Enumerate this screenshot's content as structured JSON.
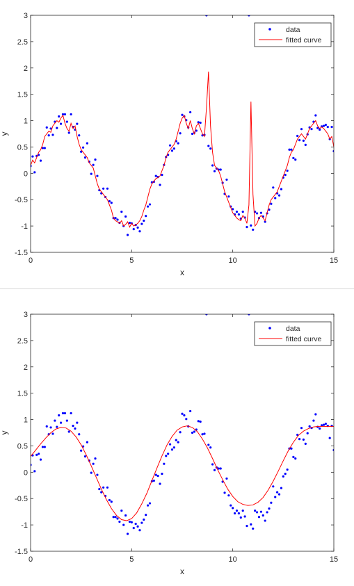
{
  "colors": {
    "data_marker": "#0000ff",
    "fitted_curve": "#ff0000",
    "axis": "#262626",
    "legend_border": "#262626"
  },
  "chart_data": [
    {
      "type": "scatter",
      "xlabel": "x",
      "ylabel": "y",
      "xlim": [
        0,
        15
      ],
      "ylim": [
        -1.5,
        3
      ],
      "xticks": [
        0,
        5,
        10,
        15
      ],
      "yticks": [
        -1.5,
        -1,
        -0.5,
        0,
        0.5,
        1,
        1.5,
        2,
        2.5,
        3
      ],
      "grid": false,
      "legend_placement": "top-right",
      "series": [
        {
          "name": "data",
          "kind": "points",
          "x": [
            0,
            0.1,
            0.2,
            0.3,
            0.4,
            0.5,
            0.6,
            0.7,
            0.8,
            0.9,
            1.0,
            1.1,
            1.2,
            1.3,
            1.4,
            1.5,
            1.6,
            1.7,
            1.8,
            1.9,
            2.0,
            2.1,
            2.2,
            2.3,
            2.4,
            2.5,
            2.6,
            2.7,
            2.8,
            2.9,
            3.0,
            3.1,
            3.2,
            3.3,
            3.4,
            3.5,
            3.6,
            3.7,
            3.8,
            3.9,
            4.0,
            4.1,
            4.2,
            4.3,
            4.4,
            4.5,
            4.6,
            4.7,
            4.8,
            4.9,
            5.0,
            5.1,
            5.2,
            5.3,
            5.4,
            5.5,
            5.6,
            5.7,
            5.8,
            5.9,
            6.0,
            6.1,
            6.2,
            6.3,
            6.4,
            6.5,
            6.6,
            6.7,
            6.8,
            6.9,
            7.0,
            7.1,
            7.2,
            7.3,
            7.4,
            7.5,
            7.6,
            7.7,
            7.8,
            7.9,
            8.0,
            8.1,
            8.2,
            8.3,
            8.4,
            8.5,
            8.6,
            8.7,
            8.8,
            8.9,
            9.0,
            9.1,
            9.2,
            9.3,
            9.4,
            9.5,
            9.6,
            9.7,
            9.8,
            9.9,
            10.0,
            10.1,
            10.2,
            10.3,
            10.4,
            10.5,
            10.6,
            10.7,
            10.8,
            10.9,
            11.0,
            11.1,
            11.2,
            11.3,
            11.4,
            11.5,
            11.6,
            11.7,
            11.8,
            11.9,
            12.0,
            12.1,
            12.2,
            12.3,
            12.4,
            12.5,
            12.6,
            12.7,
            12.8,
            12.9,
            13.0,
            13.1,
            13.2,
            13.3,
            13.4,
            13.5,
            13.6,
            13.7,
            13.8,
            13.9,
            14.0,
            14.1,
            14.2,
            14.3,
            14.4,
            14.5,
            14.6,
            14.7,
            14.8,
            14.9,
            15.0
          ],
          "y": [
            0.14,
            0.32,
            0.02,
            0.33,
            0.35,
            0.24,
            0.48,
            0.48,
            0.87,
            0.72,
            0.85,
            0.73,
            0.98,
            0.86,
            1.08,
            0.94,
            1.12,
            1.12,
            0.98,
            0.77,
            1.12,
            0.88,
            0.83,
            0.94,
            0.72,
            0.41,
            0.49,
            0.3,
            0.57,
            0.22,
            -0.01,
            0.16,
            0.26,
            -0.05,
            -0.32,
            -0.38,
            -0.29,
            -0.45,
            -0.29,
            -0.53,
            -0.56,
            -0.85,
            -0.85,
            -0.88,
            -0.94,
            -0.73,
            -1.0,
            -0.82,
            -1.17,
            -0.94,
            -0.95,
            -1.06,
            -0.98,
            -1.03,
            -1.1,
            -0.96,
            -0.9,
            -0.81,
            -0.63,
            -0.59,
            -0.17,
            -0.16,
            -0.05,
            -0.07,
            -0.22,
            -0.03,
            0.16,
            0.31,
            0.35,
            0.53,
            0.43,
            0.47,
            0.61,
            0.57,
            0.76,
            1.11,
            1.08,
            1.01,
            0.87,
            1.16,
            0.75,
            0.77,
            0.81,
            0.97,
            0.96,
            0.72,
            0.73,
            3.0,
            0.52,
            0.47,
            0.15,
            0.04,
            0.09,
            0.07,
            0.07,
            -0.18,
            -0.39,
            -0.12,
            -0.44,
            -0.63,
            -0.68,
            -0.78,
            -0.73,
            -0.78,
            -0.86,
            -0.73,
            -0.84,
            -1.02,
            3.0,
            -0.99,
            -1.07,
            -0.73,
            -0.76,
            -0.85,
            -0.75,
            -0.82,
            -0.92,
            -0.76,
            -0.69,
            -0.58,
            -0.27,
            -0.47,
            -0.38,
            -0.42,
            -0.3,
            -0.08,
            -0.03,
            0.05,
            0.45,
            0.45,
            0.29,
            0.26,
            0.71,
            0.63,
            0.84,
            0.62,
            0.54,
            0.74,
            0.87,
            0.84,
            0.98,
            1.1,
            0.86,
            0.83,
            0.89,
            0.9,
            0.92,
            0.88,
            0.65,
            0.88,
            0.42
          ]
        },
        {
          "name": "fitted curve",
          "kind": "line",
          "x": [
            0,
            0.1,
            0.2,
            0.3,
            0.4,
            0.5,
            0.6,
            0.7,
            0.8,
            0.9,
            1.0,
            1.1,
            1.2,
            1.3,
            1.4,
            1.5,
            1.6,
            1.7,
            1.8,
            1.9,
            2.0,
            2.1,
            2.2,
            2.3,
            2.4,
            2.5,
            2.6,
            2.7,
            2.8,
            2.9,
            3.0,
            3.1,
            3.2,
            3.3,
            3.4,
            3.5,
            3.6,
            3.7,
            3.8,
            3.9,
            4.0,
            4.1,
            4.2,
            4.3,
            4.4,
            4.5,
            4.6,
            4.7,
            4.8,
            4.9,
            5.0,
            5.1,
            5.2,
            5.3,
            5.4,
            5.5,
            5.6,
            5.7,
            5.8,
            5.9,
            6.0,
            6.1,
            6.2,
            6.3,
            6.4,
            6.5,
            6.6,
            6.7,
            6.8,
            6.9,
            7.0,
            7.1,
            7.2,
            7.3,
            7.4,
            7.5,
            7.6,
            7.7,
            7.8,
            7.9,
            8.0,
            8.1,
            8.2,
            8.3,
            8.4,
            8.5,
            8.6,
            8.7,
            8.8,
            8.9,
            9.0,
            9.1,
            9.2,
            9.3,
            9.4,
            9.5,
            9.6,
            9.7,
            9.8,
            9.9,
            10.0,
            10.1,
            10.2,
            10.3,
            10.4,
            10.5,
            10.6,
            10.7,
            10.8,
            10.9,
            11.0,
            11.1,
            11.2,
            11.3,
            11.4,
            11.5,
            11.6,
            11.7,
            11.8,
            11.9,
            12.0,
            12.1,
            12.2,
            12.3,
            12.4,
            12.5,
            12.6,
            12.7,
            12.8,
            12.9,
            13.0,
            13.1,
            13.2,
            13.3,
            13.4,
            13.5,
            13.6,
            13.7,
            13.8,
            13.9,
            14.0,
            14.1,
            14.2,
            14.3,
            14.4,
            14.5,
            14.6,
            14.7,
            14.8,
            14.9,
            15.0
          ],
          "y": [
            0.15,
            0.25,
            0.2,
            0.3,
            0.4,
            0.45,
            0.55,
            0.7,
            0.75,
            0.8,
            0.78,
            0.9,
            0.95,
            1.0,
            0.97,
            1.05,
            1.1,
            0.95,
            0.85,
            0.8,
            0.95,
            0.85,
            0.9,
            0.7,
            0.55,
            0.45,
            0.4,
            0.35,
            0.3,
            0.2,
            0.15,
            0.1,
            -0.05,
            -0.2,
            -0.3,
            -0.35,
            -0.4,
            -0.45,
            -0.5,
            -0.6,
            -0.7,
            -0.85,
            -0.9,
            -0.92,
            -0.95,
            -0.9,
            -1.0,
            -0.97,
            -0.92,
            -1.02,
            -0.95,
            -1.0,
            -0.98,
            -0.95,
            -0.9,
            -0.82,
            -0.7,
            -0.6,
            -0.45,
            -0.3,
            -0.2,
            -0.15,
            -0.1,
            -0.08,
            -0.05,
            0.05,
            0.15,
            0.3,
            0.4,
            0.45,
            0.5,
            0.55,
            0.65,
            0.8,
            0.95,
            1.05,
            1.1,
            0.95,
            0.85,
            1.0,
            0.85,
            0.75,
            0.9,
            0.95,
            0.85,
            0.75,
            0.7,
            1.25,
            1.93,
            0.9,
            0.4,
            0.15,
            0.1,
            0.05,
            -0.05,
            -0.2,
            -0.35,
            -0.45,
            -0.55,
            -0.65,
            -0.75,
            -0.8,
            -0.85,
            -0.88,
            -0.9,
            -0.8,
            -0.85,
            -0.95,
            -0.6,
            1.36,
            -0.4,
            -1.0,
            -0.95,
            -0.85,
            -0.8,
            -0.85,
            -0.9,
            -0.75,
            -0.6,
            -0.5,
            -0.45,
            -0.4,
            -0.35,
            -0.25,
            -0.15,
            -0.05,
            0.05,
            0.15,
            0.3,
            0.4,
            0.45,
            0.55,
            0.65,
            0.7,
            0.75,
            0.7,
            0.65,
            0.75,
            0.85,
            0.9,
            0.95,
            1.0,
            0.9,
            0.85,
            0.88,
            0.85,
            0.8,
            0.75,
            0.65,
            0.7,
            0.5
          ]
        }
      ]
    },
    {
      "type": "scatter",
      "xlabel": "x",
      "ylabel": "y",
      "xlim": [
        0,
        15
      ],
      "ylim": [
        -1.5,
        3
      ],
      "xticks": [
        0,
        5,
        10,
        15
      ],
      "yticks": [
        -1.5,
        -1,
        -0.5,
        0,
        0.5,
        1,
        1.5,
        2,
        2.5,
        3
      ],
      "grid": false,
      "legend_placement": "top-right",
      "series": [
        {
          "name": "data",
          "kind": "points",
          "x": [
            0,
            0.1,
            0.2,
            0.3,
            0.4,
            0.5,
            0.6,
            0.7,
            0.8,
            0.9,
            1.0,
            1.1,
            1.2,
            1.3,
            1.4,
            1.5,
            1.6,
            1.7,
            1.8,
            1.9,
            2.0,
            2.1,
            2.2,
            2.3,
            2.4,
            2.5,
            2.6,
            2.7,
            2.8,
            2.9,
            3.0,
            3.1,
            3.2,
            3.3,
            3.4,
            3.5,
            3.6,
            3.7,
            3.8,
            3.9,
            4.0,
            4.1,
            4.2,
            4.3,
            4.4,
            4.5,
            4.6,
            4.7,
            4.8,
            4.9,
            5.0,
            5.1,
            5.2,
            5.3,
            5.4,
            5.5,
            5.6,
            5.7,
            5.8,
            5.9,
            6.0,
            6.1,
            6.2,
            6.3,
            6.4,
            6.5,
            6.6,
            6.7,
            6.8,
            6.9,
            7.0,
            7.1,
            7.2,
            7.3,
            7.4,
            7.5,
            7.6,
            7.7,
            7.8,
            7.9,
            8.0,
            8.1,
            8.2,
            8.3,
            8.4,
            8.5,
            8.6,
            8.7,
            8.8,
            8.9,
            9.0,
            9.1,
            9.2,
            9.3,
            9.4,
            9.5,
            9.6,
            9.7,
            9.8,
            9.9,
            10.0,
            10.1,
            10.2,
            10.3,
            10.4,
            10.5,
            10.6,
            10.7,
            10.8,
            10.9,
            11.0,
            11.1,
            11.2,
            11.3,
            11.4,
            11.5,
            11.6,
            11.7,
            11.8,
            11.9,
            12.0,
            12.1,
            12.2,
            12.3,
            12.4,
            12.5,
            12.6,
            12.7,
            12.8,
            12.9,
            13.0,
            13.1,
            13.2,
            13.3,
            13.4,
            13.5,
            13.6,
            13.7,
            13.8,
            13.9,
            14.0,
            14.1,
            14.2,
            14.3,
            14.4,
            14.5,
            14.6,
            14.7,
            14.8,
            14.9,
            15.0
          ],
          "y": [
            0.14,
            0.32,
            0.02,
            0.33,
            0.35,
            0.24,
            0.48,
            0.48,
            0.87,
            0.72,
            0.85,
            0.73,
            0.98,
            0.86,
            1.08,
            0.94,
            1.12,
            1.12,
            0.98,
            0.77,
            1.12,
            0.88,
            0.83,
            0.94,
            0.72,
            0.41,
            0.49,
            0.3,
            0.57,
            0.22,
            -0.01,
            0.16,
            0.26,
            -0.05,
            -0.32,
            -0.38,
            -0.29,
            -0.45,
            -0.29,
            -0.53,
            -0.56,
            -0.85,
            -0.85,
            -0.88,
            -0.94,
            -0.73,
            -1.0,
            -0.82,
            -1.17,
            -0.94,
            -0.95,
            -1.06,
            -0.98,
            -1.03,
            -1.1,
            -0.96,
            -0.9,
            -0.81,
            -0.63,
            -0.59,
            -0.17,
            -0.16,
            -0.05,
            -0.07,
            -0.22,
            -0.03,
            0.16,
            0.31,
            0.35,
            0.53,
            0.43,
            0.47,
            0.61,
            0.57,
            0.76,
            1.11,
            1.08,
            1.01,
            0.87,
            1.16,
            0.75,
            0.77,
            0.81,
            0.97,
            0.96,
            0.72,
            0.73,
            3.0,
            0.52,
            0.47,
            0.15,
            0.04,
            0.09,
            0.07,
            0.07,
            -0.18,
            -0.39,
            -0.12,
            -0.44,
            -0.63,
            -0.68,
            -0.78,
            -0.73,
            -0.78,
            -0.86,
            -0.73,
            -0.84,
            -1.02,
            3.0,
            -0.99,
            -1.07,
            -0.73,
            -0.76,
            -0.85,
            -0.75,
            -0.82,
            -0.92,
            -0.76,
            -0.69,
            -0.58,
            -0.27,
            -0.47,
            -0.38,
            -0.42,
            -0.3,
            -0.08,
            -0.03,
            0.05,
            0.45,
            0.45,
            0.29,
            0.26,
            0.71,
            0.63,
            0.84,
            0.62,
            0.54,
            0.74,
            0.87,
            0.84,
            0.98,
            1.1,
            0.86,
            0.83,
            0.89,
            0.9,
            0.92,
            0.88,
            0.65,
            0.88,
            0.42
          ]
        },
        {
          "name": "fitted curve",
          "kind": "line",
          "x": [
            0,
            0.25,
            0.5,
            0.75,
            1.0,
            1.25,
            1.5,
            1.75,
            2.0,
            2.25,
            2.5,
            2.75,
            3.0,
            3.25,
            3.5,
            3.75,
            4.0,
            4.25,
            4.5,
            4.75,
            5.0,
            5.25,
            5.5,
            5.75,
            6.0,
            6.25,
            6.5,
            6.75,
            7.0,
            7.25,
            7.5,
            7.75,
            8.0,
            8.25,
            8.5,
            8.75,
            9.0,
            9.25,
            9.5,
            9.75,
            10.0,
            10.25,
            10.5,
            10.75,
            11.0,
            11.25,
            11.5,
            11.75,
            12.0,
            12.25,
            12.5,
            12.75,
            13.0,
            13.25,
            13.5,
            13.75,
            14.0,
            14.25,
            14.5,
            14.75,
            15.0
          ],
          "y": [
            0.3,
            0.42,
            0.54,
            0.65,
            0.75,
            0.82,
            0.85,
            0.84,
            0.78,
            0.67,
            0.52,
            0.33,
            0.12,
            -0.1,
            -0.32,
            -0.52,
            -0.69,
            -0.82,
            -0.9,
            -0.92,
            -0.88,
            -0.77,
            -0.6,
            -0.4,
            -0.16,
            0.08,
            0.31,
            0.52,
            0.68,
            0.8,
            0.86,
            0.88,
            0.85,
            0.77,
            0.63,
            0.46,
            0.26,
            0.05,
            -0.14,
            -0.32,
            -0.46,
            -0.56,
            -0.61,
            -0.63,
            -0.62,
            -0.57,
            -0.48,
            -0.34,
            -0.17,
            0.02,
            0.22,
            0.41,
            0.57,
            0.7,
            0.78,
            0.83,
            0.86,
            0.87,
            0.87,
            0.87,
            0.87
          ]
        }
      ]
    }
  ]
}
